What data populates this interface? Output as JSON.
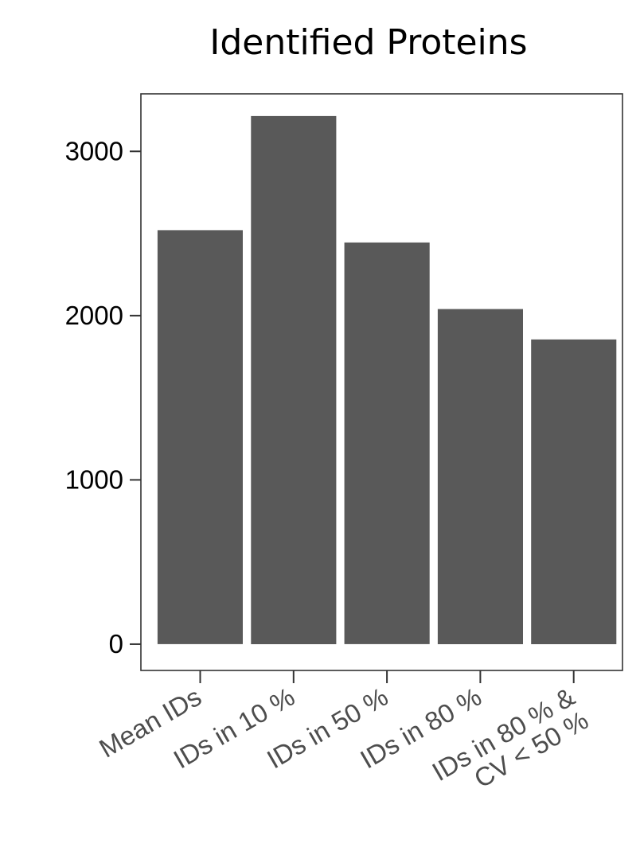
{
  "chart_data": {
    "type": "bar",
    "title": "Identified Proteins",
    "xlabel": "",
    "ylabel": "",
    "categories": [
      [
        "Mean IDs"
      ],
      [
        "IDs in 10 %"
      ],
      [
        "IDs in 50 %"
      ],
      [
        "IDs in 80 %"
      ],
      [
        "IDs in 80 % &",
        "CV < 50 %"
      ]
    ],
    "values": [
      2520,
      3215,
      2445,
      2040,
      1855
    ],
    "ylim": [
      -160,
      3350
    ],
    "yticks": [
      0,
      1000,
      2000,
      3000
    ],
    "grid": false,
    "legend": "none",
    "colors": {
      "bar": "#595959",
      "tick_label_x": "#4d4d4d",
      "tick_label_y": "#000000",
      "axis": "#333333"
    }
  }
}
